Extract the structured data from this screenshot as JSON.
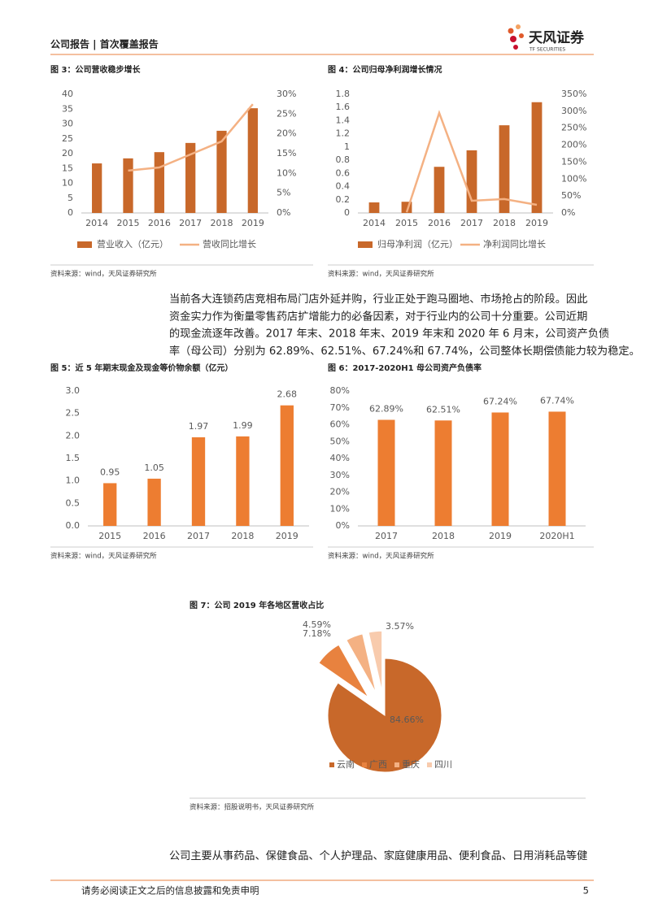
{
  "header": {
    "title": "公司报告 | 首次覆盖报告",
    "logo": "天风证券",
    "logo_en": "TF SECURITIES"
  },
  "chart_data": [
    {
      "type": "combo",
      "title": "图 3：公司营收稳步增长",
      "categories": [
        "2014",
        "2015",
        "2016",
        "2017",
        "2018",
        "2019"
      ],
      "series": [
        {
          "name": "营业收入（亿元）",
          "type": "bar",
          "color": "#c8682a",
          "values": [
            16.7,
            18.4,
            20.5,
            23.6,
            27.7,
            35.3
          ]
        },
        {
          "name": "营收同比增长",
          "type": "line",
          "axis": "y2",
          "color": "#f4b183",
          "values": [
            null,
            10.7,
            11.5,
            14.8,
            18.1,
            27.5
          ]
        }
      ],
      "ylim": [
        0,
        40
      ],
      "yticks": [
        0,
        5,
        10,
        15,
        20,
        25,
        30,
        35,
        40
      ],
      "y2lim": [
        0,
        30
      ],
      "y2ticks": [
        {
          "value": 0,
          "label": "0%"
        },
        {
          "value": 5,
          "label": "5%"
        },
        {
          "value": 10,
          "label": "10%"
        },
        {
          "value": 15,
          "label": "15%"
        },
        {
          "value": 20,
          "label": "20%"
        },
        {
          "value": 25,
          "label": "25%"
        },
        {
          "value": 30,
          "label": "30%"
        }
      ],
      "source": "资料来源：wind，天风证券研究所"
    },
    {
      "type": "combo",
      "title": "图 4：公司归母净利润增长情况",
      "categories": [
        "2014",
        "2015",
        "2016",
        "2017",
        "2018",
        "2019"
      ],
      "series": [
        {
          "name": "归母净利润（亿元）",
          "type": "bar",
          "color": "#c8682a",
          "values": [
            0.16,
            0.17,
            0.7,
            0.95,
            1.33,
            1.68
          ]
        },
        {
          "name": "净利润同比增长",
          "type": "line",
          "axis": "y2",
          "color": "#f4b183",
          "values": [
            null,
            2,
            295,
            36,
            41,
            24
          ]
        }
      ],
      "ylim": [
        0,
        1.8
      ],
      "yticks": [
        0,
        0.2,
        0.4,
        0.6,
        0.8,
        1,
        1.2,
        1.4,
        1.6,
        1.8
      ],
      "y2lim": [
        0,
        350
      ],
      "y2ticks": [
        {
          "value": 0,
          "label": "0%"
        },
        {
          "value": 50,
          "label": "50%"
        },
        {
          "value": 100,
          "label": "100%"
        },
        {
          "value": 150,
          "label": "150%"
        },
        {
          "value": 200,
          "label": "200%"
        },
        {
          "value": 250,
          "label": "250%"
        },
        {
          "value": 300,
          "label": "300%"
        },
        {
          "value": 350,
          "label": "350%"
        }
      ],
      "source": "资料来源：wind，天风证券研究所"
    },
    {
      "type": "bar",
      "title": "图 5：近 5 年期末现金及现金等价物余额（亿元）",
      "categories": [
        "2015",
        "2016",
        "2017",
        "2018",
        "2019"
      ],
      "values": [
        0.95,
        1.05,
        1.97,
        1.99,
        2.68
      ],
      "color": "#ed7d31",
      "ylim": [
        0,
        3
      ],
      "yticks": [
        {
          "value": 0,
          "label": "0.0"
        },
        {
          "value": 0.5,
          "label": "0.5"
        },
        {
          "value": 1,
          "label": "1.0"
        },
        1.5,
        {
          "value": 2,
          "label": "2.0"
        },
        2.5,
        {
          "value": 3,
          "label": "3.0"
        }
      ],
      "source": "资料来源：wind，天风证券研究所"
    },
    {
      "type": "bar",
      "title": "图 6：2017-2020H1 母公司资产负债率",
      "categories": [
        "2017",
        "2018",
        "2019",
        "2020H1"
      ],
      "values": [
        62.89,
        62.51,
        67.24,
        67.74
      ],
      "value_labels": [
        "62.89%",
        "62.51%",
        "67.24%",
        "67.74%"
      ],
      "color": "#ed7d31",
      "ylim": [
        0,
        80
      ],
      "yticks": [
        {
          "value": 0,
          "label": "0%"
        },
        {
          "value": 10,
          "label": "10%"
        },
        {
          "value": 20,
          "label": "20%"
        },
        {
          "value": 30,
          "label": "30%"
        },
        {
          "value": 40,
          "label": "40%"
        },
        {
          "value": 50,
          "label": "50%"
        },
        {
          "value": 60,
          "label": "60%"
        },
        {
          "value": 70,
          "label": "70%"
        },
        {
          "value": 80,
          "label": "80%"
        }
      ],
      "source": "资料来源：wind，天风证券研究所"
    },
    {
      "type": "pie",
      "title": "图 7：公司 2019 年各地区营收占比",
      "categories": [
        "云南",
        "广西",
        "重庆",
        "四川"
      ],
      "values": [
        84.66,
        7.18,
        4.59,
        3.57
      ],
      "value_labels": [
        "84.66%",
        "7.18%",
        "4.59%",
        "3.57%"
      ],
      "colors": [
        "#c8682a",
        "#e8823f",
        "#f4b183",
        "#f8cbad"
      ],
      "source": "资料来源：招股说明书，天风证券研究所"
    }
  ],
  "paragraphs": [
    {
      "lines": [
        "当前各大连锁药店竞相布局门店外延并购，行业正处于跑马圈地、市场抢占的阶段。因此",
        "资金实力作为衡量零售药店扩增能力的必备因素，对于行业内的公司十分重要。公司近期",
        "的现金流逐年改善。2017 年末、2018 年末、2019 年末和 2020 年 6 月末，公司资产负债",
        "率（母公司）分别为 62.89%、62.51%、67.24%和 67.74%，公司整体长期偿债能力较为稳定。"
      ]
    },
    {
      "lines": [
        "公司主要从事药品、保健食品、个人护理品、家庭健康用品、便利食品、日用消耗品等健"
      ]
    }
  ],
  "footer": {
    "disclaimer": "请务必阅读正文之后的信息披露和免责申明",
    "page": 5
  }
}
